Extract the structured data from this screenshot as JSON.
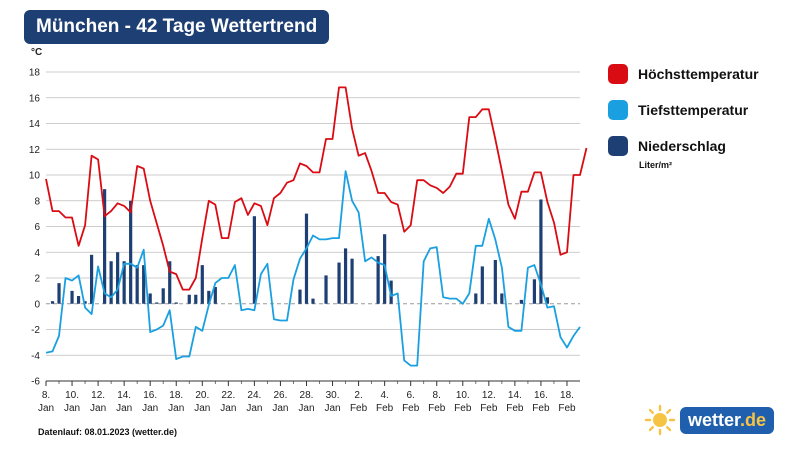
{
  "header": {
    "title": "München - 42 Tage Wettertrend"
  },
  "legend": {
    "items": [
      {
        "label": "Höchsttemperatur",
        "color": "#d90c14"
      },
      {
        "label": "Tiefsttemperatur",
        "color": "#1aa0e0"
      },
      {
        "label": "Niederschlag",
        "color": "#1d3f73"
      }
    ],
    "precip_unit": "Liter/m²"
  },
  "footer": {
    "datenlauf": "Datenlauf: 08.01.2023 (wetter.de)"
  },
  "logo": {
    "brand": "wetter",
    "tld": ".de",
    "icon": "sun-icon"
  },
  "chart_data": {
    "type": "line",
    "ylabel": "°C",
    "ylim": [
      -6,
      18
    ],
    "yticks": [
      -6,
      -4,
      -2,
      0,
      2,
      4,
      6,
      8,
      10,
      12,
      14,
      16,
      18
    ],
    "xlim_days": [
      0,
      41
    ],
    "x_tick_labels": [
      {
        "day": "8.",
        "month": "Jan"
      },
      {
        "day": "10.",
        "month": "Jan"
      },
      {
        "day": "12.",
        "month": "Jan"
      },
      {
        "day": "14.",
        "month": "Jan"
      },
      {
        "day": "16.",
        "month": "Jan"
      },
      {
        "day": "18.",
        "month": "Jan"
      },
      {
        "day": "20.",
        "month": "Jan"
      },
      {
        "day": "22.",
        "month": "Jan"
      },
      {
        "day": "24.",
        "month": "Jan"
      },
      {
        "day": "26.",
        "month": "Jan"
      },
      {
        "day": "28.",
        "month": "Jan"
      },
      {
        "day": "30.",
        "month": "Jan"
      },
      {
        "day": "2.",
        "month": "Feb"
      },
      {
        "day": "4.",
        "month": "Feb"
      },
      {
        "day": "6.",
        "month": "Feb"
      },
      {
        "day": "8.",
        "month": "Feb"
      },
      {
        "day": "10.",
        "month": "Feb"
      },
      {
        "day": "12.",
        "month": "Feb"
      },
      {
        "day": "14.",
        "month": "Feb"
      },
      {
        "day": "16.",
        "month": "Feb"
      },
      {
        "day": "18.",
        "month": "Feb"
      }
    ],
    "grid": true,
    "series": [
      {
        "name": "Höchsttemperatur",
        "color": "#d90c14",
        "points": [
          [
            0,
            9.7
          ],
          [
            0.5,
            7.2
          ],
          [
            1,
            7.2
          ],
          [
            1.5,
            6.7
          ],
          [
            2,
            6.7
          ],
          [
            2.5,
            4.5
          ],
          [
            3,
            6.1
          ],
          [
            3.5,
            11.5
          ],
          [
            4,
            11.2
          ],
          [
            4.5,
            6.8
          ],
          [
            5,
            7.2
          ],
          [
            5.5,
            7.8
          ],
          [
            6,
            7.6
          ],
          [
            6.5,
            7.1
          ],
          [
            7,
            10.7
          ],
          [
            7.5,
            10.5
          ],
          [
            8,
            8.0
          ],
          [
            9,
            4.5
          ],
          [
            9.5,
            2.5
          ],
          [
            10,
            2.3
          ],
          [
            10.5,
            1.1
          ],
          [
            11,
            1.1
          ],
          [
            11.5,
            2.0
          ],
          [
            12,
            5.1
          ],
          [
            12.5,
            8.0
          ],
          [
            13,
            7.7
          ],
          [
            13.5,
            5.1
          ],
          [
            14,
            5.1
          ],
          [
            14.5,
            7.9
          ],
          [
            15,
            8.2
          ],
          [
            15.5,
            6.9
          ],
          [
            16,
            7.8
          ],
          [
            16.5,
            7.6
          ],
          [
            17,
            6.1
          ],
          [
            17.5,
            8.2
          ],
          [
            18,
            8.6
          ],
          [
            18.5,
            9.4
          ],
          [
            19,
            9.6
          ],
          [
            19.5,
            10.9
          ],
          [
            20,
            10.7
          ],
          [
            20.5,
            10.2
          ],
          [
            21,
            10.2
          ],
          [
            21.5,
            12.8
          ],
          [
            22,
            12.8
          ],
          [
            22.5,
            16.8
          ],
          [
            23,
            16.8
          ],
          [
            23.5,
            13.6
          ],
          [
            24,
            11.5
          ],
          [
            24.5,
            11.7
          ],
          [
            25,
            10.3
          ],
          [
            25.5,
            8.6
          ],
          [
            26,
            8.6
          ],
          [
            26.5,
            7.9
          ],
          [
            27,
            7.7
          ],
          [
            27.5,
            5.6
          ],
          [
            28,
            6.1
          ],
          [
            28.5,
            9.6
          ],
          [
            29,
            9.6
          ],
          [
            29.5,
            9.2
          ],
          [
            30,
            9.0
          ],
          [
            30.5,
            8.6
          ],
          [
            31,
            9.1
          ],
          [
            31.5,
            10.1
          ],
          [
            32,
            10.1
          ],
          [
            32.5,
            14.5
          ],
          [
            33,
            14.5
          ],
          [
            33.5,
            15.1
          ],
          [
            34,
            15.1
          ],
          [
            34.5,
            12.8
          ],
          [
            35,
            10.3
          ],
          [
            35.5,
            7.7
          ],
          [
            36,
            6.6
          ],
          [
            36.5,
            8.7
          ],
          [
            37,
            8.7
          ],
          [
            37.5,
            10.2
          ],
          [
            38,
            10.2
          ],
          [
            38.5,
            7.9
          ],
          [
            39,
            6.3
          ],
          [
            39.5,
            3.8
          ],
          [
            40,
            4.0
          ],
          [
            40.5,
            10.0
          ],
          [
            41,
            10.0
          ],
          [
            41.5,
            12.1
          ]
        ]
      },
      {
        "name": "Tiefsttemperatur",
        "color": "#1aa0e0",
        "points": [
          [
            0,
            -3.8
          ],
          [
            0.5,
            -3.7
          ],
          [
            1,
            -2.5
          ],
          [
            1.5,
            2.0
          ],
          [
            2,
            1.8
          ],
          [
            2.5,
            2.2
          ],
          [
            3,
            -0.3
          ],
          [
            3.5,
            -0.8
          ],
          [
            4,
            2.9
          ],
          [
            4.5,
            0.8
          ],
          [
            5,
            0.5
          ],
          [
            5.5,
            1.1
          ],
          [
            6,
            3.1
          ],
          [
            6.5,
            3.1
          ],
          [
            7,
            2.8
          ],
          [
            7.5,
            4.2
          ],
          [
            8,
            -2.2
          ],
          [
            8.5,
            -2.0
          ],
          [
            9,
            -1.7
          ],
          [
            9.5,
            -0.5
          ],
          [
            10,
            -4.3
          ],
          [
            10.5,
            -4.1
          ],
          [
            11,
            -4.1
          ],
          [
            11.5,
            -1.8
          ],
          [
            12,
            -2.1
          ],
          [
            12.5,
            -0.1
          ],
          [
            13,
            1.6
          ],
          [
            13.5,
            2.0
          ],
          [
            14,
            2.0
          ],
          [
            14.5,
            3.0
          ],
          [
            15,
            -0.5
          ],
          [
            15.5,
            -0.4
          ],
          [
            16,
            -0.5
          ],
          [
            16.5,
            2.3
          ],
          [
            17,
            3.1
          ],
          [
            17.5,
            -1.2
          ],
          [
            18,
            -1.3
          ],
          [
            18.5,
            -1.3
          ],
          [
            19,
            1.9
          ],
          [
            19.5,
            3.5
          ],
          [
            20,
            4.3
          ],
          [
            20.5,
            5.3
          ],
          [
            21,
            5.0
          ],
          [
            21.5,
            5.0
          ],
          [
            22,
            5.1
          ],
          [
            22.5,
            5.1
          ],
          [
            23,
            10.3
          ],
          [
            23.5,
            8.0
          ],
          [
            24,
            7.1
          ],
          [
            24.5,
            3.3
          ],
          [
            25,
            3.6
          ],
          [
            25.5,
            3.2
          ],
          [
            26,
            3.0
          ],
          [
            26.5,
            0.6
          ],
          [
            27,
            0.8
          ],
          [
            27.5,
            -4.4
          ],
          [
            28,
            -4.8
          ],
          [
            28.5,
            -4.8
          ],
          [
            29,
            3.3
          ],
          [
            29.5,
            4.3
          ],
          [
            30,
            4.4
          ],
          [
            30.5,
            0.5
          ],
          [
            31,
            0.4
          ],
          [
            31.5,
            0.4
          ],
          [
            32,
            0.0
          ],
          [
            32.5,
            0.8
          ],
          [
            33,
            4.5
          ],
          [
            33.5,
            4.5
          ],
          [
            34,
            6.6
          ],
          [
            34.5,
            5.0
          ],
          [
            35,
            2.8
          ],
          [
            35.5,
            -1.8
          ],
          [
            36,
            -2.1
          ],
          [
            36.5,
            -2.1
          ],
          [
            37,
            2.8
          ],
          [
            37.5,
            3.0
          ],
          [
            38,
            1.5
          ],
          [
            38.5,
            -0.3
          ],
          [
            39,
            -0.2
          ],
          [
            39.5,
            -2.6
          ],
          [
            40,
            -3.4
          ],
          [
            40.5,
            -2.5
          ],
          [
            41,
            -1.8
          ]
        ]
      }
    ],
    "precipitation": {
      "name": "Niederschlag",
      "color": "#1d3f73",
      "unit": "Liter/m²",
      "bars": [
        [
          0.5,
          0.2
        ],
        [
          1,
          1.6
        ],
        [
          2,
          1.0
        ],
        [
          2.5,
          0.6
        ],
        [
          3,
          0.2
        ],
        [
          3.5,
          3.8
        ],
        [
          4.5,
          8.9
        ],
        [
          5,
          3.3
        ],
        [
          5.5,
          4.0
        ],
        [
          6,
          3.3
        ],
        [
          6.5,
          8.0
        ],
        [
          7,
          3.0
        ],
        [
          7.5,
          3.0
        ],
        [
          8,
          0.8
        ],
        [
          8.5,
          0.1
        ],
        [
          9,
          1.2
        ],
        [
          9.5,
          3.3
        ],
        [
          10,
          0.1
        ],
        [
          11,
          0.7
        ],
        [
          11.5,
          0.7
        ],
        [
          12,
          3.0
        ],
        [
          12.5,
          1.0
        ],
        [
          13,
          1.3
        ],
        [
          16,
          6.8
        ],
        [
          19.5,
          1.1
        ],
        [
          20,
          7.0
        ],
        [
          20.5,
          0.4
        ],
        [
          21.5,
          2.2
        ],
        [
          22.5,
          3.2
        ],
        [
          23,
          4.3
        ],
        [
          23.5,
          3.5
        ],
        [
          25.5,
          3.7
        ],
        [
          26,
          5.4
        ],
        [
          26.5,
          1.8
        ],
        [
          33,
          0.8
        ],
        [
          33.5,
          2.9
        ],
        [
          34.5,
          3.4
        ],
        [
          35,
          0.8
        ],
        [
          36.5,
          0.3
        ],
        [
          37.5,
          1.9
        ],
        [
          38,
          8.1
        ],
        [
          38.5,
          0.5
        ]
      ]
    }
  }
}
